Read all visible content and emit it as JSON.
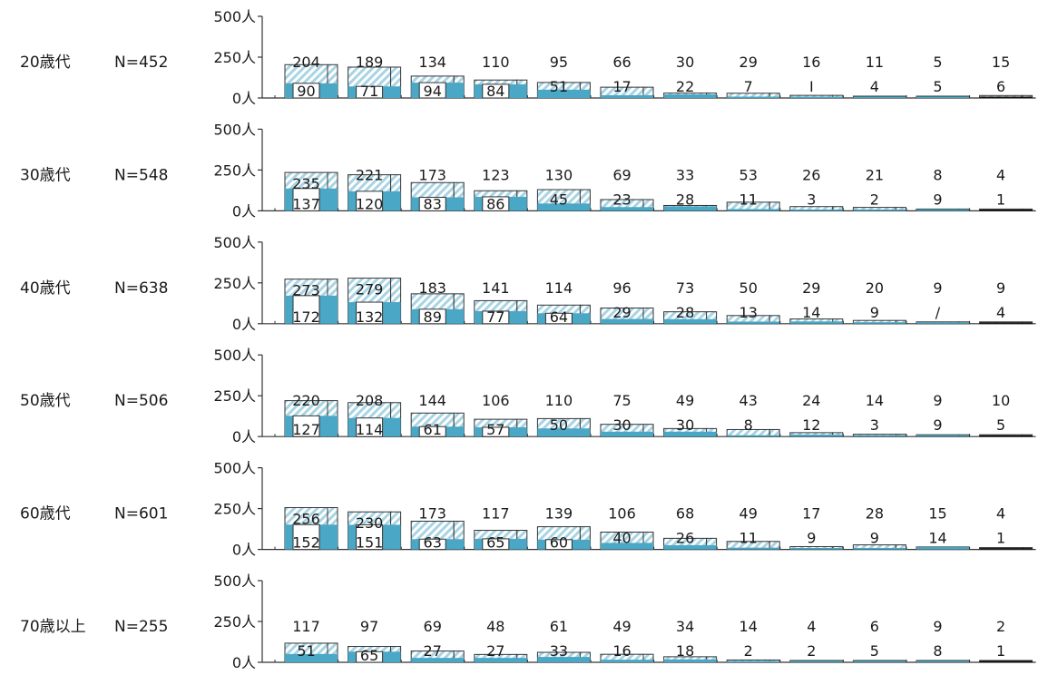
{
  "chart_data": {
    "type": "bar",
    "stacking": "overlaid",
    "ylim": [
      0,
      500
    ],
    "y_ticks": [
      "500人",
      "250人",
      "0人"
    ],
    "colors": {
      "total_hatch": "#a9d4e3",
      "total_outline": "#333333",
      "inner_fill": "#4aa7c6",
      "last_bar_fill": "#111111"
    },
    "panels": [
      {
        "group": "20歳代",
        "n_label": "N=452",
        "totals": [
          204,
          189,
          134,
          110,
          95,
          66,
          30,
          29,
          16,
          11,
          5,
          15
        ],
        "inner": [
          90,
          71,
          94,
          84,
          51,
          17,
          22,
          7,
          "I",
          4,
          5,
          6
        ]
      },
      {
        "group": "30歳代",
        "n_label": "N=548",
        "totals": [
          235,
          221,
          173,
          123,
          130,
          69,
          33,
          53,
          26,
          21,
          8,
          4
        ],
        "inner": [
          137,
          120,
          83,
          86,
          45,
          23,
          28,
          11,
          3,
          2,
          9,
          1
        ]
      },
      {
        "group": "40歳代",
        "n_label": "N=638",
        "totals": [
          273,
          279,
          183,
          141,
          114,
          96,
          73,
          50,
          29,
          20,
          9,
          9
        ],
        "inner": [
          172,
          132,
          89,
          77,
          64,
          29,
          28,
          13,
          14,
          9,
          "/",
          4
        ]
      },
      {
        "group": "50歳代",
        "n_label": "N=506",
        "totals": [
          220,
          208,
          144,
          106,
          110,
          75,
          49,
          43,
          24,
          14,
          9,
          10
        ],
        "inner": [
          127,
          114,
          61,
          57,
          50,
          30,
          30,
          8,
          12,
          3,
          9,
          5
        ]
      },
      {
        "group": "60歳代",
        "n_label": "N=601",
        "totals": [
          256,
          230,
          173,
          117,
          139,
          106,
          68,
          49,
          17,
          28,
          15,
          4
        ],
        "inner": [
          152,
          151,
          63,
          65,
          60,
          40,
          26,
          11,
          9,
          9,
          14,
          1
        ]
      },
      {
        "group": "70歳以上",
        "n_label": "N=255",
        "totals": [
          117,
          97,
          69,
          48,
          61,
          49,
          34,
          14,
          4,
          6,
          9,
          2
        ],
        "inner": [
          51,
          65,
          27,
          27,
          33,
          16,
          18,
          2,
          2,
          5,
          8,
          1
        ]
      }
    ]
  }
}
